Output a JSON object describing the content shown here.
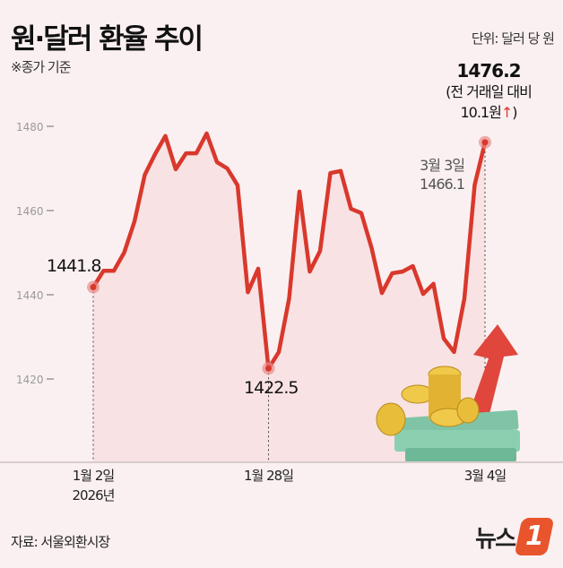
{
  "title": "원·달러 환율 추이",
  "subtitle": "※종가 기준",
  "unit": "단위: 달러 당 원",
  "source": "자료: 서울외환시장",
  "logo": "뉴스1",
  "colors": {
    "line": "#d9382c",
    "fill": "#f8e2e3",
    "background": "#fbf0f1",
    "axis": "#999999"
  },
  "annotations": {
    "start_value": "1441.8",
    "low_value": "1422.5",
    "prev_date": "3월 3일",
    "prev_value": "1466.1",
    "last_value": "1476.2",
    "last_change_line1": "(전 거래일 대비",
    "last_change_line2": "10.1원",
    "up_arrow": "↑",
    "close_paren": ")"
  },
  "chart_data": {
    "type": "area",
    "title": "원·달러 환율 추이",
    "ylabel": "단위: 달러 당 원",
    "ylim": [
      1405,
      1485
    ],
    "yticks": [
      1420,
      1440,
      1460,
      1480
    ],
    "grid": false,
    "x_tick_labels": [
      {
        "index": 0,
        "label": "1월 2일",
        "sub": "2026년"
      },
      {
        "index": 17,
        "label": "1월 28일",
        "sub": ""
      },
      {
        "index": 38,
        "label": "3월 4일",
        "sub": ""
      }
    ],
    "values": [
      1441.8,
      1445.7,
      1445.7,
      1450.0,
      1457.4,
      1468.5,
      1473.4,
      1477.7,
      1469.8,
      1473.6,
      1473.6,
      1478.3,
      1471.5,
      1470.0,
      1466.0,
      1440.6,
      1446.2,
      1422.5,
      1426.4,
      1439.1,
      1464.5,
      1445.5,
      1450.4,
      1468.9,
      1469.4,
      1460.4,
      1459.4,
      1451.1,
      1440.4,
      1445.1,
      1445.5,
      1446.8,
      1440.2,
      1442.6,
      1429.6,
      1426.4,
      1439.1,
      1466.1,
      1476.2
    ]
  }
}
